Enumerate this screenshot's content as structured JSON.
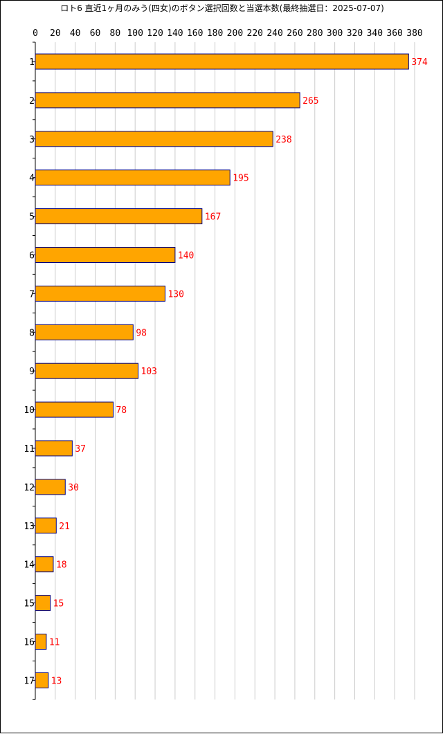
{
  "chart_data": {
    "type": "bar",
    "orientation": "horizontal",
    "title": "ロト6 直近1ヶ月のみう(四女)のボタン選択回数と当選本数(最終抽選日：2025-07-07)",
    "categories": [
      "1",
      "2",
      "3",
      "4",
      "5",
      "6",
      "7",
      "8",
      "9",
      "10",
      "11",
      "12",
      "13",
      "14",
      "15",
      "16",
      "17"
    ],
    "values": [
      374,
      265,
      238,
      195,
      167,
      140,
      130,
      98,
      103,
      78,
      37,
      30,
      21,
      18,
      15,
      11,
      13
    ],
    "xlim": [
      0,
      380
    ],
    "xticks": [
      0,
      20,
      40,
      60,
      80,
      100,
      120,
      140,
      160,
      180,
      200,
      220,
      240,
      260,
      280,
      300,
      320,
      340,
      360,
      380
    ],
    "xaxis_position": "top",
    "grid": true,
    "legend": "none",
    "colors": {
      "bar_fill": "#ffa500",
      "bar_stroke": "#000080",
      "value_label": "#ff0000",
      "grid": "#cccccc",
      "axis": "#000000"
    }
  }
}
